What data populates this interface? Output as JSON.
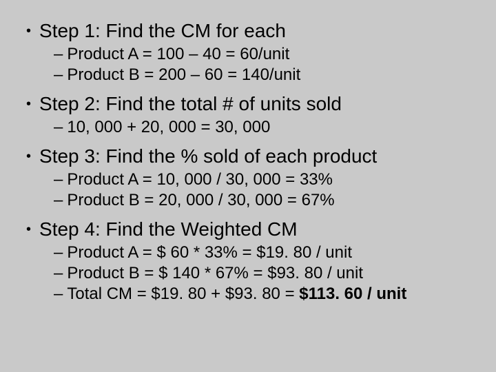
{
  "step1": {
    "title": "Step 1:  Find the CM for each",
    "sub1": "Product A = 100 – 40 = 60/unit",
    "sub2": "Product B = 200 – 60 = 140/unit"
  },
  "step2": {
    "title": "Step 2:  Find the total # of units sold",
    "sub1": "10, 000 + 20, 000 = 30, 000"
  },
  "step3": {
    "title": "Step 3:  Find the % sold of each product",
    "sub1": "Product A = 10, 000 / 30, 000 = 33%",
    "sub2": "Product B = 20, 000 / 30, 000 = 67%"
  },
  "step4": {
    "title": "Step 4:  Find the Weighted CM",
    "sub1": "Product A = $ 60 * 33% = $19. 80 / unit",
    "sub2": "Product B = $ 140 * 67% = $93. 80 / unit",
    "sub3_prefix": "Total CM = $19. 80 + $93. 80 = ",
    "sub3_bold": "$113. 60 / unit"
  },
  "style": {
    "background_color": "#c9c9c9",
    "text_color": "#000000",
    "step_fontsize": 28,
    "sub_fontsize": 24,
    "font_family": "Arial"
  }
}
